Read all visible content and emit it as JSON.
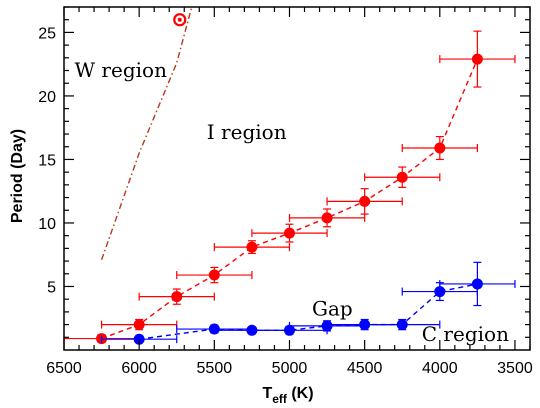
{
  "chart_data": {
    "type": "scatter",
    "xlabel": "T",
    "xlabel_sub": "eff",
    "xlabel_unit": " (K)",
    "ylabel": "Period (Day)",
    "xlim": [
      6500,
      3400
    ],
    "ylim": [
      0,
      27
    ],
    "x_ticks": [
      6500,
      6000,
      5500,
      5000,
      4500,
      4000,
      3500
    ],
    "y_ticks": [
      5,
      10,
      15,
      20,
      25
    ],
    "grid": false,
    "series": [
      {
        "color": "#ff0000",
        "marker": "filled-circle",
        "line": "dashed",
        "points": [
          {
            "x": 6250,
            "y": 0.9,
            "xerr": 250,
            "yerr": 0.3
          },
          {
            "x": 6000,
            "y": 2.0,
            "xerr": 250,
            "yerr": 0.4
          },
          {
            "x": 5750,
            "y": 4.2,
            "xerr": 250,
            "yerr": 0.6
          },
          {
            "x": 5500,
            "y": 5.9,
            "xerr": 250,
            "yerr": 0.6
          },
          {
            "x": 5250,
            "y": 8.1,
            "xerr": 250,
            "yerr": 0.5
          },
          {
            "x": 5000,
            "y": 9.2,
            "xerr": 250,
            "yerr": 0.7
          },
          {
            "x": 4750,
            "y": 10.4,
            "xerr": 250,
            "yerr": 0.7
          },
          {
            "x": 4500,
            "y": 11.7,
            "xerr": 250,
            "yerr": 1.0
          },
          {
            "x": 4250,
            "y": 13.6,
            "xerr": 250,
            "yerr": 0.8
          },
          {
            "x": 4000,
            "y": 15.9,
            "xerr": 250,
            "yerr": 0.9
          },
          {
            "x": 3750,
            "y": 22.9,
            "xerr": 250,
            "yerr": 2.2
          }
        ]
      },
      {
        "color": "#0000ff",
        "marker": "filled-circle",
        "line": "dashed",
        "points": [
          {
            "x": 6000,
            "y": 0.85,
            "xerr": 250,
            "yerr": 0.2
          },
          {
            "x": 5500,
            "y": 1.65,
            "xerr": 250,
            "yerr": 0.3
          },
          {
            "x": 5250,
            "y": 1.55,
            "xerr": 250,
            "yerr": 0.2
          },
          {
            "x": 5000,
            "y": 1.55,
            "xerr": 250,
            "yerr": 0.3
          },
          {
            "x": 4750,
            "y": 1.9,
            "xerr": 250,
            "yerr": 0.4
          },
          {
            "x": 4500,
            "y": 2.0,
            "xerr": 250,
            "yerr": 0.4
          },
          {
            "x": 4250,
            "y": 2.0,
            "xerr": 250,
            "yerr": 0.4
          },
          {
            "x": 4000,
            "y": 4.6,
            "xerr": 250,
            "yerr": 0.7
          },
          {
            "x": 3750,
            "y": 5.2,
            "xerr": 250,
            "yerr": 1.7
          }
        ]
      },
      {
        "color": "#b33a1a",
        "line": "dash-dot",
        "points": [
          {
            "x": 6250,
            "y": 7.1
          },
          {
            "x": 6000,
            "y": 15.5
          },
          {
            "x": 5750,
            "y": 22.6
          },
          {
            "x": 5650,
            "y": 27.0
          }
        ]
      }
    ],
    "special_marker": {
      "x": 5730,
      "y": 26.0,
      "color": "#ff0000",
      "symbol": "circled-dot"
    },
    "annotations": [
      {
        "text": "W region",
        "x": 6430,
        "y": 21.5
      },
      {
        "text": "I region",
        "x": 5550,
        "y": 16.6
      },
      {
        "text": "Gap",
        "x": 4850,
        "y": 2.7
      },
      {
        "text": "C region",
        "x": 4120,
        "y": 0.7
      }
    ]
  }
}
